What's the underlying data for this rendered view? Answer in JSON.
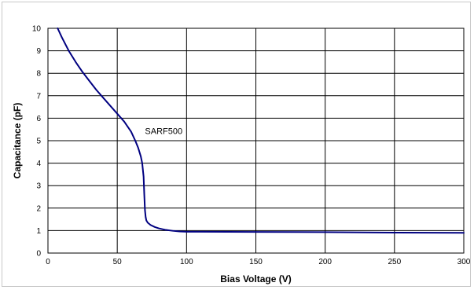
{
  "chart_data": {
    "type": "line",
    "xlabel": "Bias Voltage (V)",
    "ylabel": "Capacitance (pF)",
    "xlim": [
      0,
      300
    ],
    "ylim": [
      0,
      10
    ],
    "x_ticks": [
      "0",
      "50",
      "100",
      "150",
      "200",
      "250",
      "300"
    ],
    "y_ticks": [
      "0",
      "1",
      "2",
      "3",
      "4",
      "5",
      "6",
      "7",
      "8",
      "9",
      "10"
    ],
    "grid": true,
    "legend": "none",
    "line_color": "#000080",
    "series": [
      {
        "x": [
          7,
          10,
          15,
          20,
          25,
          30,
          35,
          40,
          45,
          50,
          55,
          60,
          63,
          65,
          67,
          68,
          69,
          69.5,
          70,
          70.5,
          71,
          72,
          74,
          77,
          80,
          85,
          90,
          95,
          100,
          150,
          200,
          250,
          300
        ],
        "values": [
          10,
          9.6,
          9.0,
          8.5,
          8.05,
          7.65,
          7.25,
          6.9,
          6.55,
          6.2,
          5.85,
          5.4,
          5.0,
          4.7,
          4.3,
          4.0,
          3.4,
          2.6,
          1.9,
          1.6,
          1.45,
          1.35,
          1.25,
          1.16,
          1.1,
          1.03,
          0.99,
          0.96,
          0.95,
          0.94,
          0.93,
          0.91,
          0.9
        ]
      }
    ],
    "annotations": [
      {
        "text": "SARF500",
        "x": 70,
        "y": 5.3
      }
    ]
  }
}
